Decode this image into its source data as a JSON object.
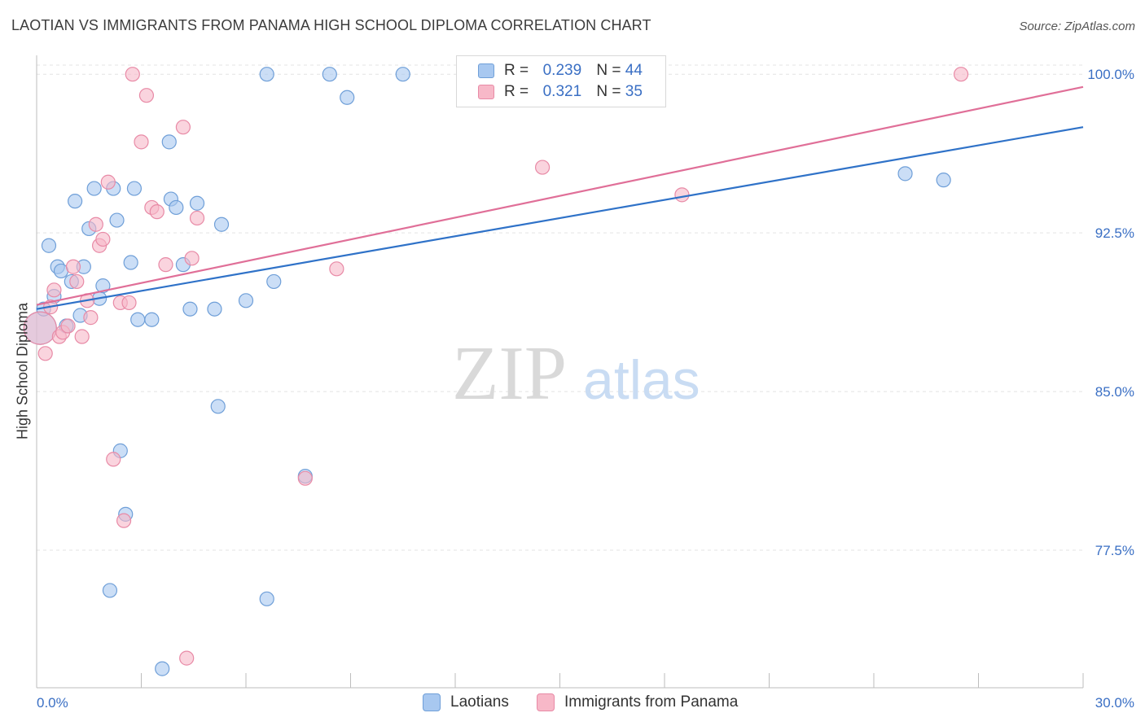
{
  "header": {
    "title": "LAOTIAN VS IMMIGRANTS FROM PANAMA HIGH SCHOOL DIPLOMA CORRELATION CHART",
    "source": "Source: ZipAtlas.com"
  },
  "legend": {
    "rows": [
      {
        "r_label": "R =",
        "r_value": "0.239",
        "n_label": "N =",
        "n_value": "44"
      },
      {
        "r_label": "R =",
        "r_value": "0.321",
        "n_label": "N =",
        "n_value": "35"
      }
    ]
  },
  "watermark": {
    "zip": "ZIP",
    "atlas": "atlas"
  },
  "colors": {
    "blue_fill": "#a8c8f0",
    "blue_stroke": "#6f9fd8",
    "blue_line": "#2f72c8",
    "pink_fill": "#f7b8c8",
    "pink_stroke": "#e88aa6",
    "pink_line": "#e06f98",
    "axis_text": "#3a6fc4",
    "grid": "#e3e3e3"
  },
  "chart_data": {
    "type": "scatter",
    "title": "LAOTIAN VS IMMIGRANTS FROM PANAMA HIGH SCHOOL DIPLOMA CORRELATION CHART",
    "xlabel": "",
    "ylabel": "High School Diploma",
    "xlim": [
      0,
      30
    ],
    "ylim": [
      71.0,
      101.2
    ],
    "x_tick_labels": [
      "0.0%",
      "30.0%"
    ],
    "y_ticks": [
      77.5,
      85.0,
      92.5,
      100.0
    ],
    "y_tick_labels": [
      "77.5%",
      "85.0%",
      "92.5%",
      "100.0%"
    ],
    "grid": true,
    "legend_position": "bottom",
    "series": [
      {
        "name": "Laotians",
        "color": "#a8c8f0",
        "r": 0.239,
        "n": 44,
        "trend": {
          "x": [
            0,
            30
          ],
          "y": [
            88.9,
            97.5
          ]
        },
        "points": [
          {
            "x": 0.1,
            "y": 88.0,
            "big": true
          },
          {
            "x": 0.2,
            "y": 88.9
          },
          {
            "x": 0.35,
            "y": 91.9
          },
          {
            "x": 0.5,
            "y": 89.5
          },
          {
            "x": 0.6,
            "y": 90.9
          },
          {
            "x": 0.7,
            "y": 90.7
          },
          {
            "x": 0.85,
            "y": 88.1
          },
          {
            "x": 1.0,
            "y": 90.2
          },
          {
            "x": 1.1,
            "y": 94.0
          },
          {
            "x": 1.25,
            "y": 88.6
          },
          {
            "x": 1.35,
            "y": 90.9
          },
          {
            "x": 1.5,
            "y": 92.7
          },
          {
            "x": 1.65,
            "y": 94.6
          },
          {
            "x": 1.8,
            "y": 89.4
          },
          {
            "x": 1.9,
            "y": 90.0
          },
          {
            "x": 2.2,
            "y": 94.6
          },
          {
            "x": 2.3,
            "y": 93.1
          },
          {
            "x": 2.4,
            "y": 82.2
          },
          {
            "x": 2.55,
            "y": 79.2
          },
          {
            "x": 2.7,
            "y": 91.1
          },
          {
            "x": 2.9,
            "y": 88.4
          },
          {
            "x": 3.3,
            "y": 88.4
          },
          {
            "x": 2.1,
            "y": 75.6
          },
          {
            "x": 2.8,
            "y": 94.6
          },
          {
            "x": 3.6,
            "y": 71.9
          },
          {
            "x": 3.8,
            "y": 96.8
          },
          {
            "x": 3.85,
            "y": 94.1
          },
          {
            "x": 4.0,
            "y": 93.7
          },
          {
            "x": 4.2,
            "y": 91.0
          },
          {
            "x": 4.4,
            "y": 88.9
          },
          {
            "x": 4.6,
            "y": 93.9
          },
          {
            "x": 5.1,
            "y": 88.9
          },
          {
            "x": 5.2,
            "y": 84.3
          },
          {
            "x": 5.3,
            "y": 92.9
          },
          {
            "x": 6.0,
            "y": 89.3
          },
          {
            "x": 6.6,
            "y": 75.2
          },
          {
            "x": 6.6,
            "y": 100.0
          },
          {
            "x": 6.8,
            "y": 90.2
          },
          {
            "x": 7.7,
            "y": 81.0
          },
          {
            "x": 8.4,
            "y": 100.0
          },
          {
            "x": 8.9,
            "y": 98.9
          },
          {
            "x": 10.5,
            "y": 100.0
          },
          {
            "x": 24.9,
            "y": 95.3
          },
          {
            "x": 26.0,
            "y": 95.0
          }
        ]
      },
      {
        "name": "Immigrants from Panama",
        "color": "#f7b8c8",
        "r": 0.321,
        "n": 35,
        "trend": {
          "x": [
            0,
            30
          ],
          "y": [
            89.1,
            99.4
          ]
        },
        "points": [
          {
            "x": 0.1,
            "y": 88.0,
            "big": true
          },
          {
            "x": 0.25,
            "y": 86.8
          },
          {
            "x": 0.4,
            "y": 89.0
          },
          {
            "x": 0.5,
            "y": 89.8
          },
          {
            "x": 0.65,
            "y": 87.6
          },
          {
            "x": 0.75,
            "y": 87.8
          },
          {
            "x": 0.9,
            "y": 88.1
          },
          {
            "x": 1.05,
            "y": 90.9
          },
          {
            "x": 1.15,
            "y": 90.2
          },
          {
            "x": 1.3,
            "y": 87.6
          },
          {
            "x": 1.45,
            "y": 89.3
          },
          {
            "x": 1.55,
            "y": 88.5
          },
          {
            "x": 1.7,
            "y": 92.9
          },
          {
            "x": 1.8,
            "y": 91.9
          },
          {
            "x": 1.9,
            "y": 92.2
          },
          {
            "x": 2.05,
            "y": 94.9
          },
          {
            "x": 2.2,
            "y": 81.8
          },
          {
            "x": 2.4,
            "y": 89.2
          },
          {
            "x": 2.5,
            "y": 78.9
          },
          {
            "x": 2.65,
            "y": 89.2
          },
          {
            "x": 2.75,
            "y": 100.0
          },
          {
            "x": 3.0,
            "y": 96.8
          },
          {
            "x": 3.15,
            "y": 99.0
          },
          {
            "x": 3.3,
            "y": 93.7
          },
          {
            "x": 3.45,
            "y": 93.5
          },
          {
            "x": 3.7,
            "y": 91.0
          },
          {
            "x": 4.2,
            "y": 97.5
          },
          {
            "x": 4.3,
            "y": 72.4
          },
          {
            "x": 4.45,
            "y": 91.3
          },
          {
            "x": 4.6,
            "y": 93.2
          },
          {
            "x": 7.7,
            "y": 80.9
          },
          {
            "x": 8.6,
            "y": 90.8
          },
          {
            "x": 14.5,
            "y": 95.6
          },
          {
            "x": 18.5,
            "y": 94.3
          },
          {
            "x": 26.5,
            "y": 100.0
          }
        ]
      }
    ]
  }
}
